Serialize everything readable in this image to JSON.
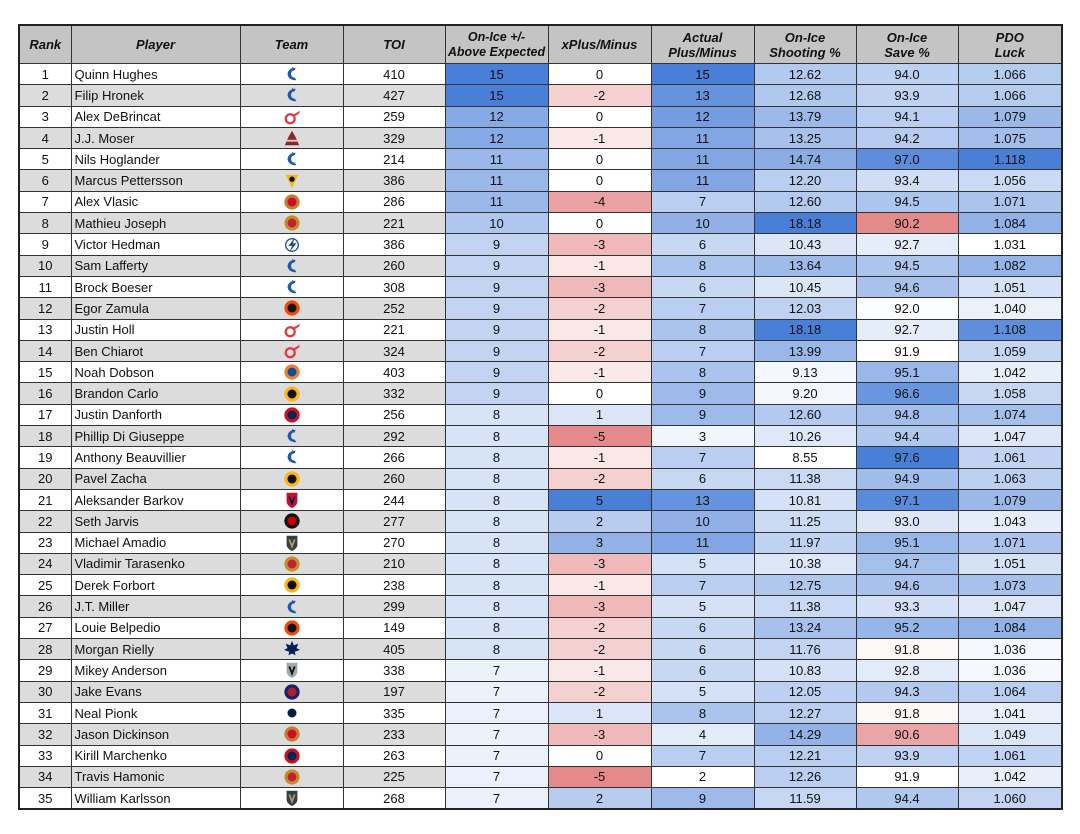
{
  "table": {
    "headers": {
      "rank": "Rank",
      "player": "Player",
      "team": "Team",
      "toi": "TOI",
      "onice_above_expected": [
        "On-Ice +/-",
        "Above Expected"
      ],
      "xplusminus": "xPlus/Minus",
      "actual_plusminus": [
        "Actual",
        "Plus/Minus"
      ],
      "onice_shooting": [
        "On-Ice",
        "Shooting %"
      ],
      "onice_save": [
        "On-Ice",
        "Save %"
      ],
      "pdo": [
        "PDO",
        "Luck"
      ]
    },
    "rows": [
      {
        "rank": "1",
        "player": "Quinn Hughes",
        "team": "canucks",
        "toi": "410",
        "above": "15",
        "xpm": "0",
        "actual": "15",
        "sh": "12.62",
        "sv": "94.0",
        "pdo": "1.066"
      },
      {
        "rank": "2",
        "player": "Filip Hronek",
        "team": "canucks",
        "toi": "427",
        "above": "15",
        "xpm": "-2",
        "actual": "13",
        "sh": "12.68",
        "sv": "93.9",
        "pdo": "1.066"
      },
      {
        "rank": "3",
        "player": "Alex DeBrincat",
        "team": "red-wings",
        "toi": "259",
        "above": "12",
        "xpm": "0",
        "actual": "12",
        "sh": "13.79",
        "sv": "94.1",
        "pdo": "1.079"
      },
      {
        "rank": "4",
        "player": "J.J. Moser",
        "team": "coyotes",
        "toi": "329",
        "above": "12",
        "xpm": "-1",
        "actual": "11",
        "sh": "13.25",
        "sv": "94.2",
        "pdo": "1.075"
      },
      {
        "rank": "5",
        "player": "Nils Hoglander",
        "team": "canucks",
        "toi": "214",
        "above": "11",
        "xpm": "0",
        "actual": "11",
        "sh": "14.74",
        "sv": "97.0",
        "pdo": "1.118"
      },
      {
        "rank": "6",
        "player": "Marcus Pettersson",
        "team": "penguins",
        "toi": "386",
        "above": "11",
        "xpm": "0",
        "actual": "11",
        "sh": "12.20",
        "sv": "93.4",
        "pdo": "1.056"
      },
      {
        "rank": "7",
        "player": "Alex Vlasic",
        "team": "blackhawks",
        "toi": "286",
        "above": "11",
        "xpm": "-4",
        "actual": "7",
        "sh": "12.60",
        "sv": "94.5",
        "pdo": "1.071"
      },
      {
        "rank": "8",
        "player": "Mathieu Joseph",
        "team": "senators",
        "toi": "221",
        "above": "10",
        "xpm": "0",
        "actual": "10",
        "sh": "18.18",
        "sv": "90.2",
        "pdo": "1.084"
      },
      {
        "rank": "9",
        "player": "Victor Hedman",
        "team": "lightning",
        "toi": "386",
        "above": "9",
        "xpm": "-3",
        "actual": "6",
        "sh": "10.43",
        "sv": "92.7",
        "pdo": "1.031"
      },
      {
        "rank": "10",
        "player": "Sam Lafferty",
        "team": "canucks",
        "toi": "260",
        "above": "9",
        "xpm": "-1",
        "actual": "8",
        "sh": "13.64",
        "sv": "94.5",
        "pdo": "1.082"
      },
      {
        "rank": "11",
        "player": "Brock Boeser",
        "team": "canucks",
        "toi": "308",
        "above": "9",
        "xpm": "-3",
        "actual": "6",
        "sh": "10.45",
        "sv": "94.6",
        "pdo": "1.051"
      },
      {
        "rank": "12",
        "player": "Egor Zamula",
        "team": "flyers",
        "toi": "252",
        "above": "9",
        "xpm": "-2",
        "actual": "7",
        "sh": "12.03",
        "sv": "92.0",
        "pdo": "1.040"
      },
      {
        "rank": "13",
        "player": "Justin Holl",
        "team": "red-wings",
        "toi": "221",
        "above": "9",
        "xpm": "-1",
        "actual": "8",
        "sh": "18.18",
        "sv": "92.7",
        "pdo": "1.108"
      },
      {
        "rank": "14",
        "player": "Ben Chiarot",
        "team": "red-wings",
        "toi": "324",
        "above": "9",
        "xpm": "-2",
        "actual": "7",
        "sh": "13.99",
        "sv": "91.9",
        "pdo": "1.059"
      },
      {
        "rank": "15",
        "player": "Noah Dobson",
        "team": "islanders",
        "toi": "403",
        "above": "9",
        "xpm": "-1",
        "actual": "8",
        "sh": "9.13",
        "sv": "95.1",
        "pdo": "1.042"
      },
      {
        "rank": "16",
        "player": "Brandon Carlo",
        "team": "bruins",
        "toi": "332",
        "above": "9",
        "xpm": "0",
        "actual": "9",
        "sh": "9.20",
        "sv": "96.6",
        "pdo": "1.058"
      },
      {
        "rank": "17",
        "player": "Justin Danforth",
        "team": "blue-jackets",
        "toi": "256",
        "above": "8",
        "xpm": "1",
        "actual": "9",
        "sh": "12.60",
        "sv": "94.8",
        "pdo": "1.074"
      },
      {
        "rank": "18",
        "player": "Phillip Di Giuseppe",
        "team": "canucks",
        "toi": "292",
        "above": "8",
        "xpm": "-5",
        "actual": "3",
        "sh": "10.26",
        "sv": "94.4",
        "pdo": "1.047"
      },
      {
        "rank": "19",
        "player": "Anthony Beauvillier",
        "team": "canucks",
        "toi": "266",
        "above": "8",
        "xpm": "-1",
        "actual": "7",
        "sh": "8.55",
        "sv": "97.6",
        "pdo": "1.061"
      },
      {
        "rank": "20",
        "player": "Pavel Zacha",
        "team": "bruins",
        "toi": "260",
        "above": "8",
        "xpm": "-2",
        "actual": "6",
        "sh": "11.38",
        "sv": "94.9",
        "pdo": "1.063"
      },
      {
        "rank": "21",
        "player": "Aleksander Barkov",
        "team": "panthers",
        "toi": "244",
        "above": "8",
        "xpm": "5",
        "actual": "13",
        "sh": "10.81",
        "sv": "97.1",
        "pdo": "1.079"
      },
      {
        "rank": "22",
        "player": "Seth Jarvis",
        "team": "hurricanes",
        "toi": "277",
        "above": "8",
        "xpm": "2",
        "actual": "10",
        "sh": "11.25",
        "sv": "93.0",
        "pdo": "1.043"
      },
      {
        "rank": "23",
        "player": "Michael Amadio",
        "team": "golden-knights",
        "toi": "270",
        "above": "8",
        "xpm": "3",
        "actual": "11",
        "sh": "11.97",
        "sv": "95.1",
        "pdo": "1.071"
      },
      {
        "rank": "24",
        "player": "Vladimir Tarasenko",
        "team": "senators",
        "toi": "210",
        "above": "8",
        "xpm": "-3",
        "actual": "5",
        "sh": "10.38",
        "sv": "94.7",
        "pdo": "1.051"
      },
      {
        "rank": "25",
        "player": "Derek Forbort",
        "team": "bruins",
        "toi": "238",
        "above": "8",
        "xpm": "-1",
        "actual": "7",
        "sh": "12.75",
        "sv": "94.6",
        "pdo": "1.073"
      },
      {
        "rank": "26",
        "player": "J.T. Miller",
        "team": "canucks",
        "toi": "299",
        "above": "8",
        "xpm": "-3",
        "actual": "5",
        "sh": "11.38",
        "sv": "93.3",
        "pdo": "1.047"
      },
      {
        "rank": "27",
        "player": "Louie Belpedio",
        "team": "flyers",
        "toi": "149",
        "above": "8",
        "xpm": "-2",
        "actual": "6",
        "sh": "13.24",
        "sv": "95.2",
        "pdo": "1.084"
      },
      {
        "rank": "28",
        "player": "Morgan Rielly",
        "team": "maple-leafs",
        "toi": "405",
        "above": "8",
        "xpm": "-2",
        "actual": "6",
        "sh": "11.76",
        "sv": "91.8",
        "pdo": "1.036"
      },
      {
        "rank": "29",
        "player": "Mikey Anderson",
        "team": "kings",
        "toi": "338",
        "above": "7",
        "xpm": "-1",
        "actual": "6",
        "sh": "10.83",
        "sv": "92.8",
        "pdo": "1.036"
      },
      {
        "rank": "30",
        "player": "Jake Evans",
        "team": "canadiens",
        "toi": "197",
        "above": "7",
        "xpm": "-2",
        "actual": "5",
        "sh": "12.05",
        "sv": "94.3",
        "pdo": "1.064"
      },
      {
        "rank": "31",
        "player": "Neal Pionk",
        "team": "jets",
        "toi": "335",
        "above": "7",
        "xpm": "1",
        "actual": "8",
        "sh": "12.27",
        "sv": "91.8",
        "pdo": "1.041"
      },
      {
        "rank": "32",
        "player": "Jason Dickinson",
        "team": "blackhawks",
        "toi": "233",
        "above": "7",
        "xpm": "-3",
        "actual": "4",
        "sh": "14.29",
        "sv": "90.6",
        "pdo": "1.049"
      },
      {
        "rank": "33",
        "player": "Kirill Marchenko",
        "team": "blue-jackets",
        "toi": "263",
        "above": "7",
        "xpm": "0",
        "actual": "7",
        "sh": "12.21",
        "sv": "93.9",
        "pdo": "1.061"
      },
      {
        "rank": "34",
        "player": "Travis Hamonic",
        "team": "senators",
        "toi": "225",
        "above": "7",
        "xpm": "-5",
        "actual": "2",
        "sh": "12.26",
        "sv": "91.9",
        "pdo": "1.042"
      },
      {
        "rank": "35",
        "player": "William Karlsson",
        "team": "golden-knights",
        "toi": "268",
        "above": "7",
        "xpm": "2",
        "actual": "9",
        "sh": "11.59",
        "sv": "94.4",
        "pdo": "1.060"
      }
    ]
  },
  "color_scale": {
    "high": "#4a7fd8",
    "mid": "#ffffff",
    "low": "#e48a8a",
    "ranges": {
      "above": [
        6,
        15,
        6
      ],
      "xpm": [
        -5,
        5,
        0
      ],
      "actual": [
        2,
        15,
        2
      ],
      "sh": [
        8.55,
        18.18,
        8.55
      ],
      "sv": [
        90.2,
        97.6,
        91.9
      ],
      "pdo": [
        1.031,
        1.118,
        1.031
      ]
    }
  },
  "team_logos": {
    "canucks": {
      "shape": "c-orca",
      "fg": "#1f5aa8",
      "bg": "none"
    },
    "red-wings": {
      "shape": "wing",
      "fg": "#e03a3e",
      "bg": "none"
    },
    "coyotes": {
      "shape": "coyote",
      "fg": "#8c2633",
      "bg": "none"
    },
    "penguins": {
      "shape": "penguin",
      "fg": "#111111",
      "bg": "#fcb514"
    },
    "blackhawks": {
      "shape": "circle",
      "fg": "#cf0a2c",
      "bg": "#c08030"
    },
    "senators": {
      "shape": "circle",
      "fg": "#c52032",
      "bg": "#c2912c"
    },
    "lightning": {
      "shape": "bolt",
      "fg": "#1f4c9c",
      "bg": "none"
    },
    "flyers": {
      "shape": "circle",
      "fg": "#111111",
      "bg": "#f74902"
    },
    "islanders": {
      "shape": "circle",
      "fg": "#00539b",
      "bg": "#f47d30"
    },
    "bruins": {
      "shape": "circle",
      "fg": "#111111",
      "bg": "#fcb514"
    },
    "blue-jackets": {
      "shape": "circle",
      "fg": "#002654",
      "bg": "#ce1126"
    },
    "panthers": {
      "shape": "shield",
      "fg": "#041e42",
      "bg": "#c8102e"
    },
    "hurricanes": {
      "shape": "circle",
      "fg": "#cc0000",
      "bg": "#111111"
    },
    "golden-knights": {
      "shape": "shield",
      "fg": "#b4975a",
      "bg": "#333f42"
    },
    "maple-leafs": {
      "shape": "leaf",
      "fg": "#00205b",
      "bg": "none"
    },
    "kings": {
      "shape": "shield",
      "fg": "#111111",
      "bg": "#a2aaad"
    },
    "canadiens": {
      "shape": "circle",
      "fg": "#af1e2d",
      "bg": "#192168"
    },
    "jets": {
      "shape": "circle",
      "fg": "#041e42",
      "bg": "#ffffff"
    }
  }
}
